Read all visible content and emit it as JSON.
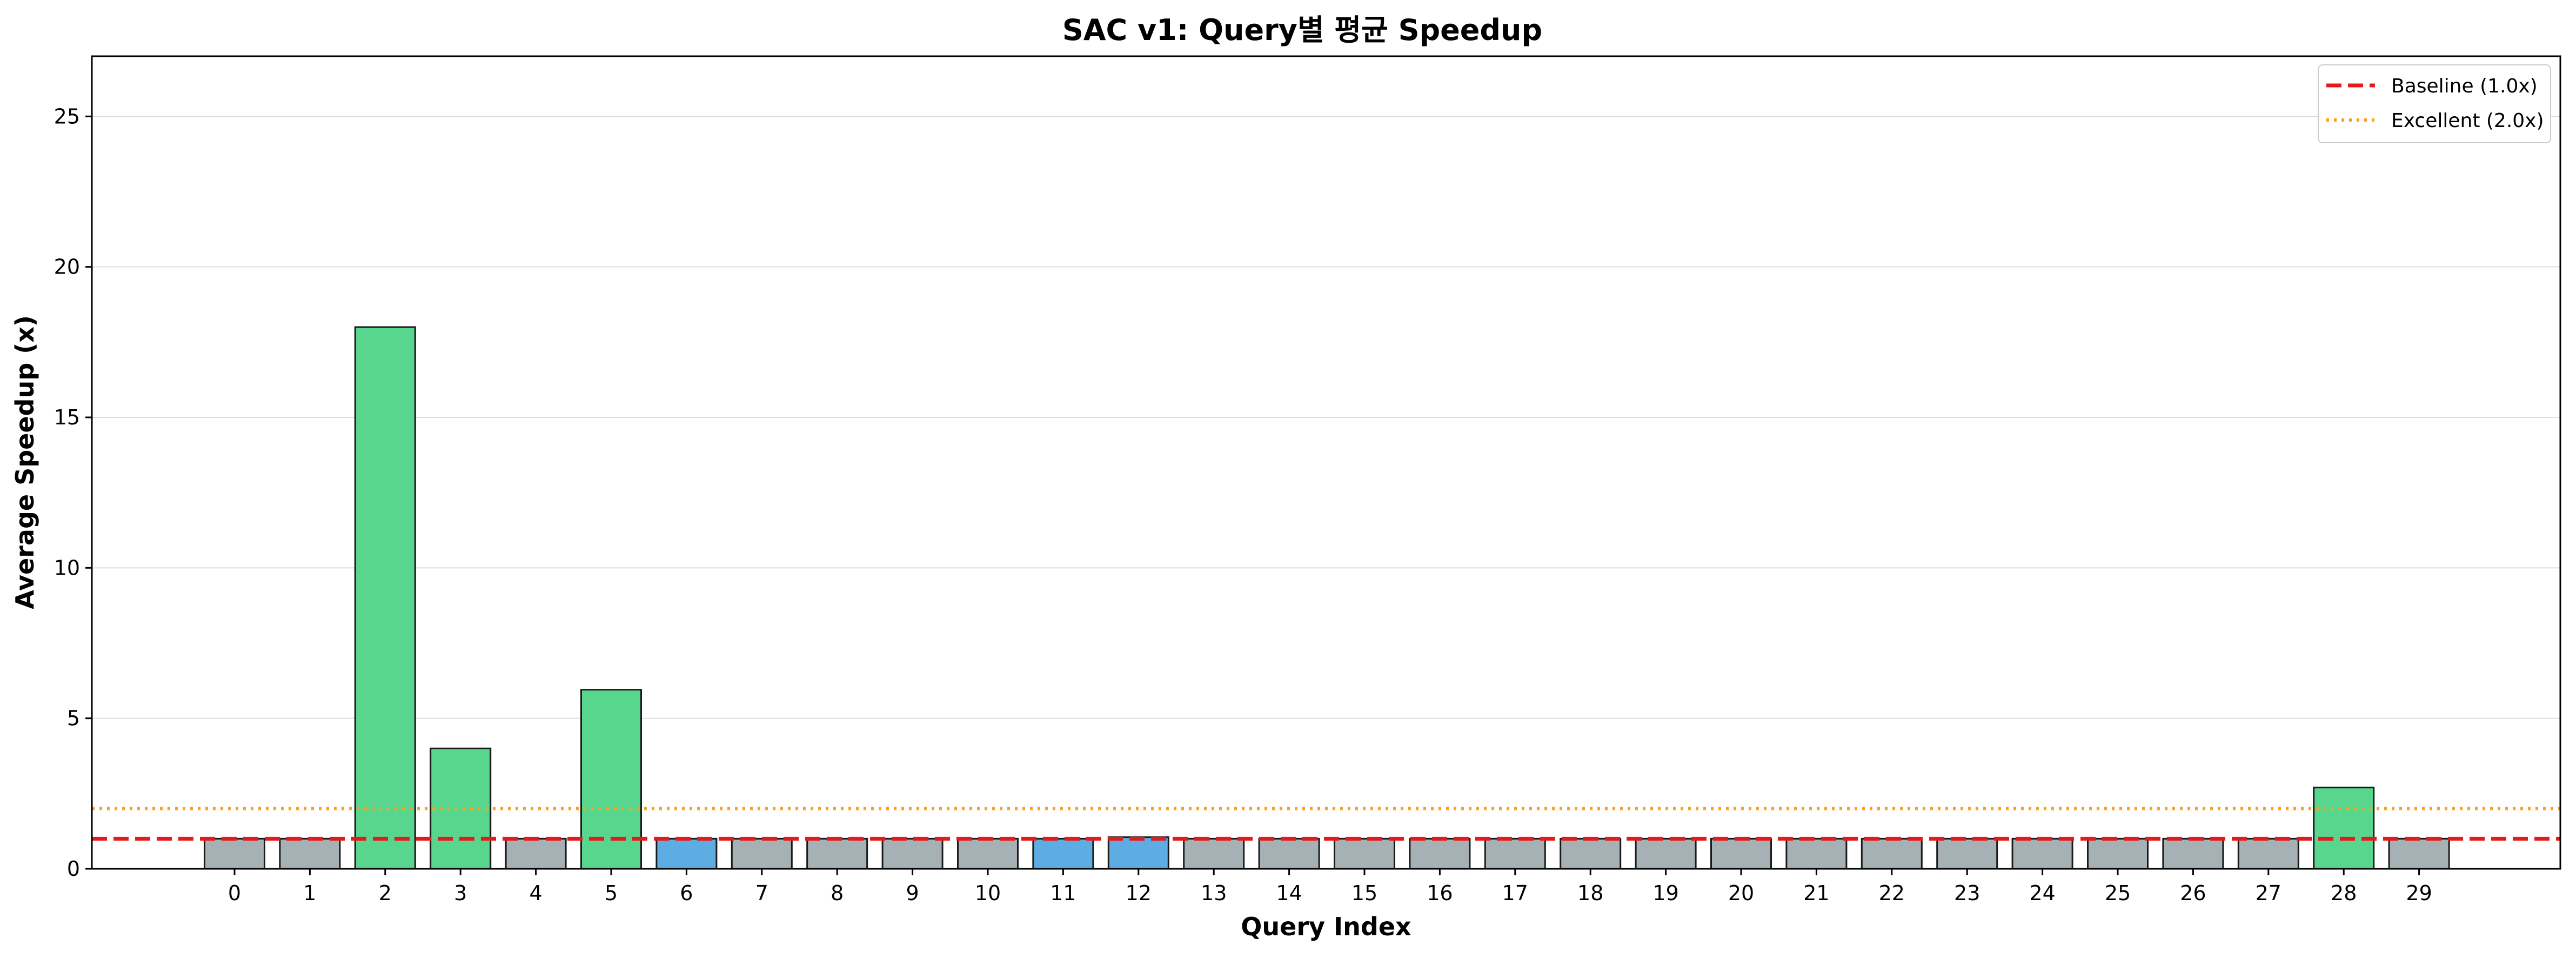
{
  "chart_data": {
    "type": "bar",
    "title": "SAC v1: Query별 평균 Speedup",
    "xlabel": "Query Index",
    "ylabel": "Average Speedup (x)",
    "categories": [
      "0",
      "1",
      "2",
      "3",
      "4",
      "5",
      "6",
      "7",
      "8",
      "9",
      "10",
      "11",
      "12",
      "13",
      "14",
      "15",
      "16",
      "17",
      "18",
      "19",
      "20",
      "21",
      "22",
      "23",
      "24",
      "25",
      "26",
      "27",
      "28",
      "29"
    ],
    "values": [
      1.0,
      1.0,
      18.0,
      4.0,
      1.0,
      5.95,
      1.0,
      1.0,
      1.0,
      1.0,
      1.0,
      1.0,
      1.05,
      1.0,
      1.0,
      1.0,
      1.0,
      1.0,
      1.0,
      1.0,
      1.0,
      1.0,
      1.0,
      1.0,
      1.0,
      1.0,
      1.0,
      1.0,
      2.7,
      1.0
    ],
    "bar_colors": [
      "#a5b1b5",
      "#a5b1b5",
      "#58d68d",
      "#58d68d",
      "#a5b1b5",
      "#58d68d",
      "#5dade2",
      "#a5b1b5",
      "#a5b1b5",
      "#a5b1b5",
      "#a5b1b5",
      "#5dade2",
      "#5dade2",
      "#a5b1b5",
      "#a5b1b5",
      "#a5b1b5",
      "#a5b1b5",
      "#a5b1b5",
      "#a5b1b5",
      "#a5b1b5",
      "#a5b1b5",
      "#a5b1b5",
      "#a5b1b5",
      "#a5b1b5",
      "#a5b1b5",
      "#a5b1b5",
      "#a5b1b5",
      "#a5b1b5",
      "#58d68d",
      "#a5b1b5"
    ],
    "ylim": [
      0,
      27
    ],
    "yticks": [
      0,
      5,
      10,
      15,
      20,
      25
    ],
    "grid": "horizontal",
    "reference_lines": [
      {
        "name": "Baseline (1.0x)",
        "value": 1.0,
        "color": "#e41a1c",
        "style": "dashed"
      },
      {
        "name": "Excellent (2.0x)",
        "value": 2.0,
        "color": "#ff9f1a",
        "style": "dotted"
      }
    ],
    "legend_position": "top-right"
  }
}
